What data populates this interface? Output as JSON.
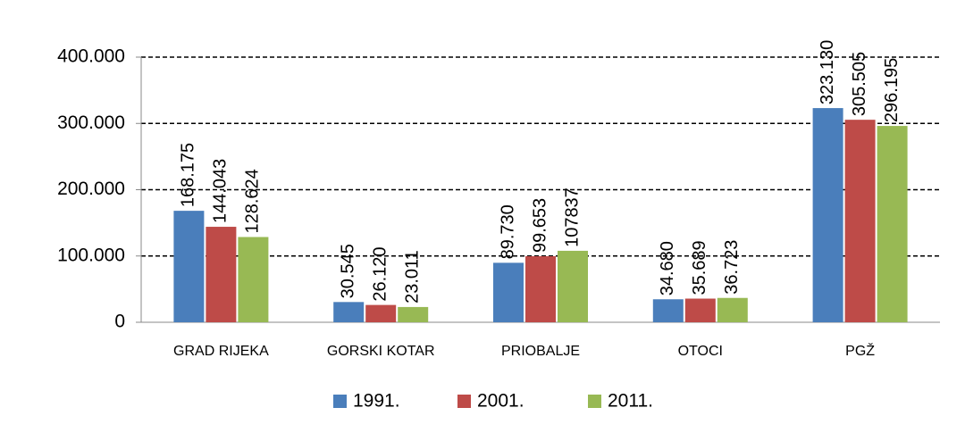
{
  "chart_data": {
    "type": "bar",
    "categories": [
      "GRAD RIJEKA",
      "GORSKI KOTAR",
      "PRIOBALJE",
      "OTOCI",
      "PGŽ"
    ],
    "series": [
      {
        "name": "1991.",
        "color": "#4a7ebb",
        "values": [
          168175,
          30545,
          89730,
          34680,
          323130
        ],
        "value_labels": [
          "168.175",
          "30.545",
          "89.730",
          "34.680",
          "323.130"
        ]
      },
      {
        "name": "2001.",
        "color": "#be4b48",
        "values": [
          144043,
          26120,
          99653,
          35689,
          305505
        ],
        "value_labels": [
          "144.043",
          "26.120",
          "99.653",
          "35.689",
          "305.505"
        ]
      },
      {
        "name": "2011.",
        "color": "#98b954",
        "values": [
          128624,
          23011,
          107837,
          36723,
          296195
        ],
        "value_labels": [
          "128.624",
          "23.011",
          "107837",
          "36.723",
          "296.195"
        ]
      }
    ],
    "ylim": [
      0,
      400000
    ],
    "yticks": [
      0,
      {
        "value": 100000,
        "label": "100.000"
      },
      {
        "value": 200000,
        "label": "200.000"
      },
      {
        "value": 300000,
        "label": "300.000"
      },
      {
        "value": 400000,
        "label": "400.000"
      }
    ],
    "grid": true,
    "legend": "bottom"
  }
}
